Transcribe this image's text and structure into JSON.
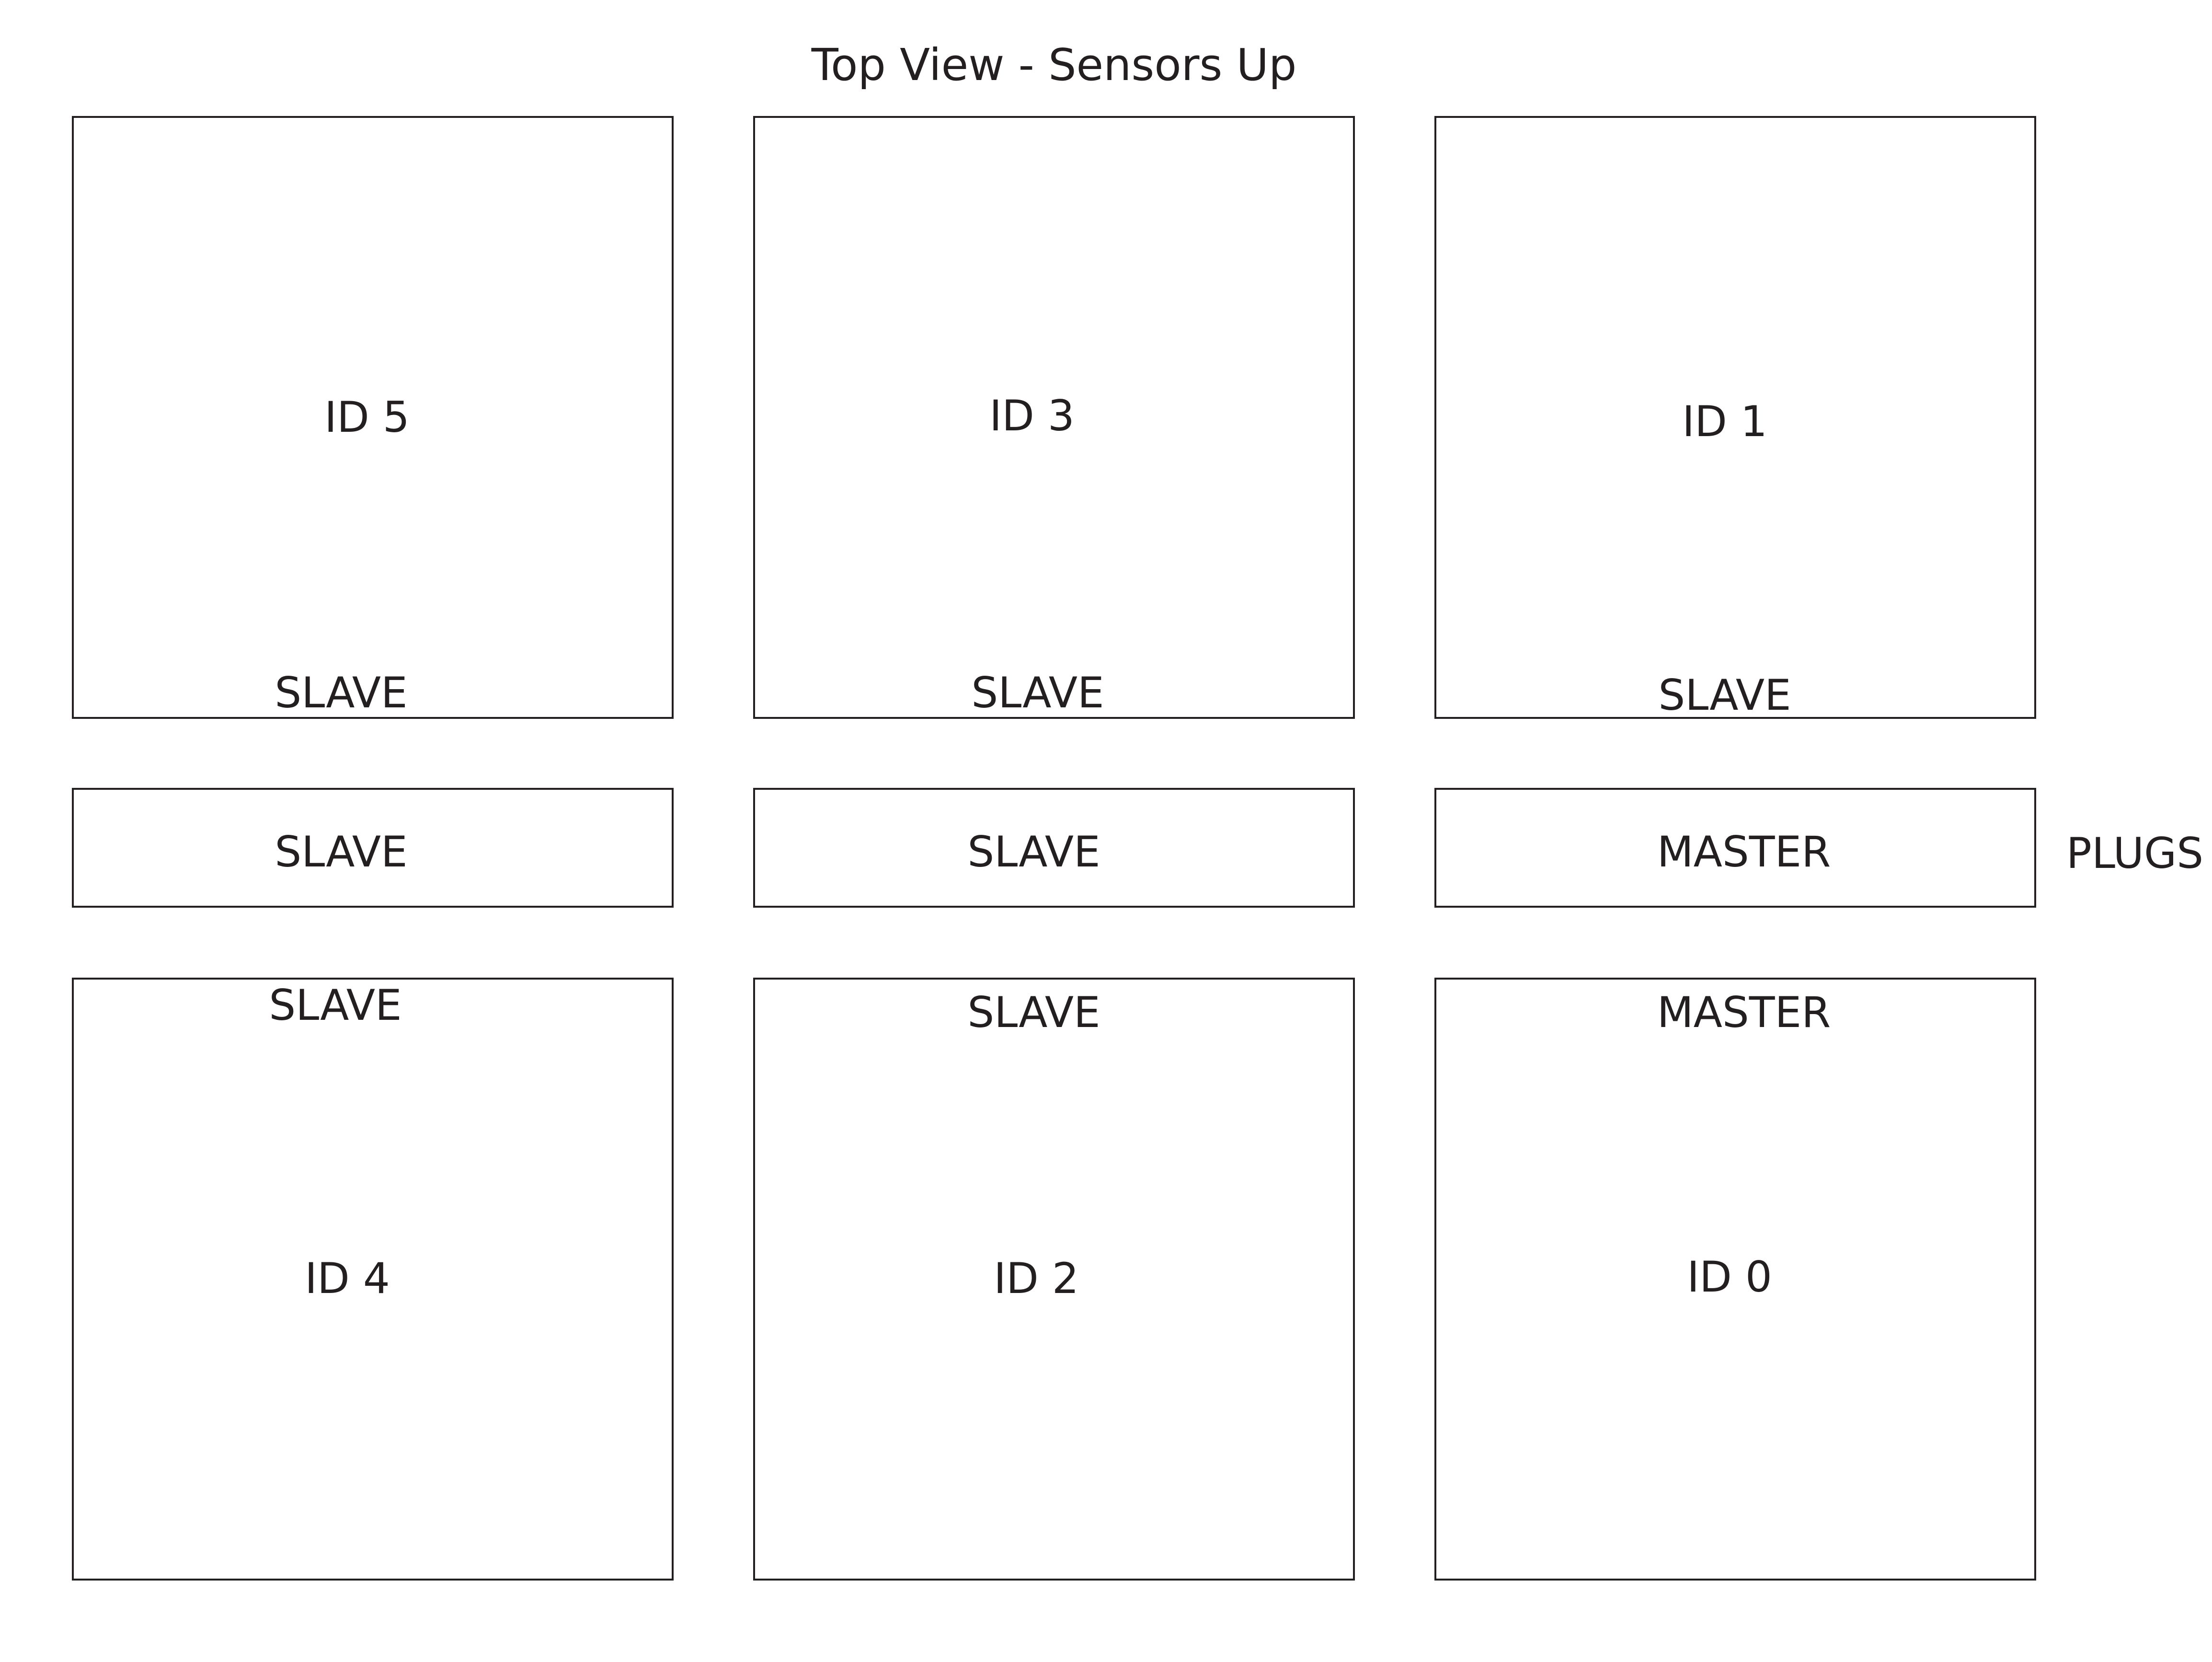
{
  "title": "Top View - Sensors Up",
  "side_label": "PLUGS",
  "top_row": [
    {
      "id_label": "ID 5",
      "role": "SLAVE"
    },
    {
      "id_label": "ID 3",
      "role": "SLAVE"
    },
    {
      "id_label": "ID 1",
      "role": "SLAVE"
    }
  ],
  "plug_row": [
    {
      "role": "SLAVE"
    },
    {
      "role": "SLAVE"
    },
    {
      "role": "MASTER"
    }
  ],
  "bottom_row": [
    {
      "id_label": "ID 4",
      "role": "SLAVE"
    },
    {
      "id_label": "ID 2",
      "role": "SLAVE"
    },
    {
      "id_label": "ID 0",
      "role": "MASTER"
    }
  ]
}
